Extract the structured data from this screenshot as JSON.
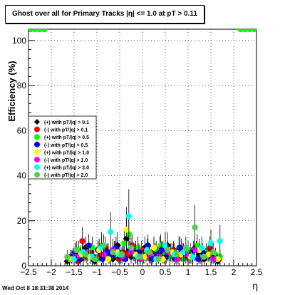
{
  "title": "Ghost over all for Primary Tracks |η| <= 1.0 at pT > 0.11",
  "datestamp": "Wed Oct  8 18:31:38 2014",
  "chart_data": {
    "type": "scatter",
    "title": "Ghost over all for Primary Tracks |η| <= 1.0 at pT > 0.11",
    "xlabel": "η",
    "ylabel": "Efficiency (%)",
    "xlim": [
      -2.5,
      2.5
    ],
    "ylim": [
      0,
      105
    ],
    "x_ticks": [
      "-2.5",
      "-2",
      "-1.5",
      "-1",
      "-0.5",
      "0",
      "0.5",
      "1",
      "1.5",
      "2",
      "2.5"
    ],
    "y_ticks": [
      "0",
      "20",
      "40",
      "60",
      "80",
      "100"
    ],
    "grid": true,
    "legend_position": "left-middle",
    "series": [
      {
        "name": "(+) with pT/|q| > 0.1",
        "color": "#000000",
        "x": [
          -1.65,
          -1.55,
          -1.45,
          -1.35,
          -1.25,
          -1.15,
          -1.05,
          -0.95,
          -0.85,
          -0.75,
          -0.65,
          -0.55,
          -0.45,
          -0.35,
          -0.25,
          -0.15,
          -0.05,
          0.05,
          0.15,
          0.25,
          0.35,
          0.45,
          0.55,
          0.65,
          0.75,
          0.85,
          0.95,
          1.05,
          1.15,
          1.25,
          1.35,
          1.45,
          1.55,
          1.65
        ],
        "y": [
          2,
          4,
          6,
          3,
          8,
          5,
          2,
          7,
          4,
          6,
          3,
          9,
          5,
          12,
          4,
          6,
          3,
          8,
          5,
          7,
          4,
          6,
          9,
          5,
          3,
          7,
          4,
          6,
          8,
          5,
          3,
          6,
          4,
          2
        ],
        "err": [
          2,
          3,
          4,
          3,
          5,
          4,
          2,
          5,
          4,
          4,
          3,
          6,
          4,
          8,
          3,
          5,
          3,
          5,
          4,
          5,
          3,
          5,
          6,
          4,
          3,
          5,
          3,
          4,
          5,
          4,
          3,
          4,
          3,
          2
        ]
      },
      {
        "name": "(-) with pT/|q| > 0.1",
        "color": "#ff0000",
        "x": [
          -1.62,
          -1.52,
          -1.42,
          -1.32,
          -1.22,
          -1.12,
          -1.02,
          -0.92,
          -0.82,
          -0.72,
          -0.62,
          -0.52,
          -0.42,
          -0.32,
          -0.22,
          -0.12,
          -0.02,
          0.08,
          0.18,
          0.28,
          0.38,
          0.48,
          0.58,
          0.68,
          0.78,
          0.88,
          0.98,
          1.08,
          1.18,
          1.28,
          1.38,
          1.48,
          1.58,
          1.68
        ],
        "y": [
          3,
          5,
          2,
          11,
          4,
          6,
          3,
          5,
          8,
          4,
          7,
          3,
          6,
          5,
          9,
          4,
          7,
          5,
          3,
          6,
          8,
          4,
          5,
          7,
          3,
          6,
          5,
          4,
          7,
          3,
          5,
          8,
          4,
          3
        ],
        "err": [
          2,
          3,
          2,
          6,
          3,
          4,
          2,
          3,
          5,
          3,
          4,
          2,
          4,
          3,
          5,
          3,
          4,
          3,
          2,
          4,
          5,
          3,
          3,
          4,
          2,
          4,
          3,
          3,
          4,
          2,
          3,
          5,
          3,
          2
        ]
      },
      {
        "name": "(+) with pT/|q| > 0.5",
        "color": "#00ff00",
        "x": [
          -2.45,
          -2.35,
          -2.25,
          -2.15,
          -1.6,
          -1.5,
          -1.4,
          -1.3,
          -1.2,
          -1.1,
          -1.0,
          -0.9,
          -0.8,
          -0.7,
          -0.6,
          -0.5,
          -0.4,
          -0.3,
          -0.2,
          -0.1,
          0.0,
          0.1,
          0.2,
          0.3,
          0.4,
          0.5,
          0.6,
          0.7,
          0.8,
          0.9,
          1.0,
          1.1,
          1.2,
          1.3,
          1.4,
          1.5,
          1.6,
          1.7,
          2.15,
          2.25,
          2.35,
          2.45
        ],
        "y": [
          105,
          105,
          105,
          105,
          3,
          5,
          7,
          4,
          6,
          8,
          3,
          9,
          5,
          4,
          7,
          6,
          10,
          14,
          5,
          8,
          4,
          6,
          3,
          7,
          9,
          5,
          4,
          6,
          8,
          3,
          7,
          5,
          9,
          4,
          6,
          3,
          5,
          4,
          105,
          105,
          105,
          105
        ],
        "err": [
          0,
          0,
          0,
          0,
          2,
          3,
          4,
          3,
          4,
          5,
          2,
          6,
          3,
          3,
          4,
          4,
          6,
          8,
          3,
          5,
          3,
          4,
          2,
          4,
          5,
          3,
          3,
          4,
          5,
          2,
          4,
          3,
          5,
          3,
          4,
          2,
          3,
          3,
          0,
          0,
          0,
          0
        ]
      },
      {
        "name": "(-) with pT/|q| > 0.5",
        "color": "#0000ff",
        "x": [
          -1.58,
          -1.48,
          -1.38,
          -1.28,
          -1.18,
          -1.08,
          -0.98,
          -0.88,
          -0.78,
          -0.68,
          -0.58,
          -0.48,
          -0.38,
          -0.28,
          -0.18,
          -0.08,
          0.02,
          0.12,
          0.22,
          0.32,
          0.42,
          0.52,
          0.62,
          0.72,
          0.82,
          0.92,
          1.02,
          1.12,
          1.22,
          1.32,
          1.42,
          1.52,
          1.62
        ],
        "y": [
          4,
          6,
          3,
          5,
          9,
          4,
          7,
          3,
          6,
          5,
          8,
          4,
          3,
          7,
          5,
          6,
          4,
          9,
          3,
          5,
          7,
          4,
          6,
          3,
          8,
          5,
          4,
          7,
          3,
          6,
          5,
          4,
          3
        ],
        "err": [
          3,
          4,
          2,
          3,
          5,
          3,
          4,
          2,
          4,
          3,
          5,
          3,
          2,
          4,
          3,
          4,
          3,
          5,
          2,
          3,
          4,
          3,
          4,
          2,
          5,
          3,
          3,
          4,
          2,
          4,
          3,
          3,
          2
        ]
      },
      {
        "name": "(+) with pT/|q| > 1.0",
        "color": "#ffff00",
        "x": [
          -1.55,
          -1.35,
          -1.15,
          -0.95,
          -0.75,
          -0.55,
          -0.35,
          -0.15,
          0.05,
          0.25,
          0.45,
          0.65,
          0.85,
          1.05,
          1.25,
          1.45,
          1.65
        ],
        "y": [
          3,
          5,
          4,
          7,
          3,
          6,
          16,
          5,
          4,
          8,
          3,
          6,
          5,
          4,
          7,
          5,
          3
        ],
        "err": [
          2,
          4,
          3,
          5,
          2,
          4,
          10,
          4,
          3,
          5,
          2,
          4,
          3,
          3,
          5,
          3,
          2
        ]
      },
      {
        "name": "(-) with pT/|q| > 1.0",
        "color": "#ff00ff",
        "x": [
          -1.45,
          -1.25,
          -1.05,
          -0.85,
          -0.65,
          -0.45,
          -0.25,
          -0.05,
          0.15,
          0.35,
          0.55,
          0.75,
          0.95,
          1.15,
          1.35,
          1.55
        ],
        "y": [
          4,
          6,
          3,
          5,
          7,
          4,
          6,
          3,
          5,
          4,
          6,
          3,
          5,
          7,
          4,
          3
        ],
        "err": [
          3,
          4,
          2,
          3,
          5,
          3,
          4,
          2,
          3,
          3,
          4,
          2,
          3,
          5,
          3,
          2
        ]
      },
      {
        "name": "(+) with pT/|q| > 2.0",
        "color": "#00ffff",
        "x": [
          -1.5,
          -1.3,
          -1.1,
          -0.9,
          -0.7,
          -0.5,
          -0.3,
          -0.1,
          0.1,
          0.3,
          0.5,
          0.7,
          0.9,
          1.1,
          1.3,
          1.5,
          1.7
        ],
        "y": [
          3,
          6,
          4,
          8,
          15,
          5,
          22,
          4,
          7,
          3,
          9,
          5,
          6,
          4,
          8,
          10,
          11
        ],
        "err": [
          2,
          4,
          3,
          5,
          9,
          4,
          12,
          3,
          5,
          2,
          6,
          3,
          4,
          3,
          5,
          6,
          7
        ]
      },
      {
        "name": "(-) with pT/|q| > 2.0",
        "color": "#55cc55",
        "x": [
          -1.65,
          -1.45,
          -1.25,
          -1.05,
          -0.85,
          -0.65,
          -0.45,
          -0.25,
          -0.05,
          0.15,
          0.35,
          0.55,
          0.75,
          0.95,
          1.15,
          1.35,
          1.55
        ],
        "y": [
          4,
          7,
          5,
          3,
          9,
          6,
          5,
          8,
          4,
          6,
          3,
          7,
          5,
          8,
          17,
          4,
          6
        ],
        "err": [
          3,
          4,
          3,
          2,
          5,
          4,
          3,
          5,
          3,
          4,
          2,
          4,
          3,
          5,
          10,
          3,
          4
        ]
      }
    ]
  }
}
